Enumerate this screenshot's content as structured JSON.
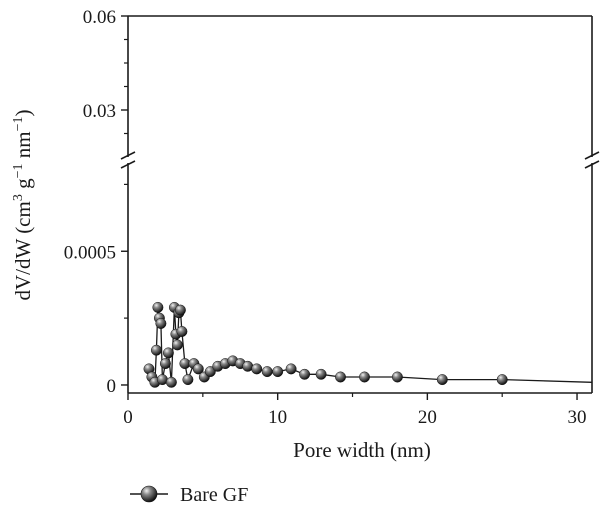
{
  "chart_data": {
    "type": "scatter",
    "broken_y_axis": true,
    "xlabel": "Pore width (nm)",
    "ylabel": "dV/dW (cm3 g−1 nm−1)",
    "xlim": [
      0,
      31
    ],
    "ylim_lower": [
      -3e-05,
      0.00083
    ],
    "ylim_upper": [
      0.015,
      0.06
    ],
    "x_ticks": [
      0,
      10,
      20,
      30
    ],
    "x_tick_labels": [
      "0",
      "10",
      "20",
      "30"
    ],
    "y_ticks_lower": [
      0,
      0.0005
    ],
    "y_tick_labels_lower": [
      "0",
      "0.0005"
    ],
    "y_ticks_upper": [
      0.03,
      0.06
    ],
    "y_tick_labels_upper": [
      "0.03",
      "0.06"
    ],
    "grid": false,
    "legend_position": "bottom-left",
    "colors": {
      "marker": "#2b2b2b",
      "line": "#1a1a1a"
    },
    "series": [
      {
        "name": "Bare GF",
        "marker": "sphere",
        "x": [
          1.4,
          1.6,
          1.8,
          1.9,
          2.0,
          2.1,
          2.2,
          2.3,
          2.5,
          2.7,
          2.9,
          3.1,
          3.2,
          3.3,
          3.4,
          3.5,
          3.6,
          3.8,
          4.0,
          4.4,
          4.7,
          5.1,
          5.5,
          6.0,
          6.5,
          7.0,
          7.5,
          8.0,
          8.6,
          9.3,
          10.0,
          10.9,
          11.8,
          12.9,
          14.2,
          15.8,
          18.0,
          21.0,
          25.0,
          31.0
        ],
        "y": [
          6e-05,
          3e-05,
          1e-05,
          0.00013,
          0.00029,
          0.00025,
          0.00023,
          2e-05,
          8e-05,
          0.00012,
          1e-05,
          0.00029,
          0.00019,
          0.00015,
          0.00027,
          0.00028,
          0.0002,
          8e-05,
          2e-05,
          8e-05,
          6e-05,
          3e-05,
          5e-05,
          7e-05,
          8e-05,
          9e-05,
          8e-05,
          7e-05,
          6e-05,
          5e-05,
          5e-05,
          6e-05,
          4e-05,
          4e-05,
          3e-05,
          3e-05,
          3e-05,
          2e-05,
          2e-05,
          1e-05
        ]
      }
    ]
  }
}
